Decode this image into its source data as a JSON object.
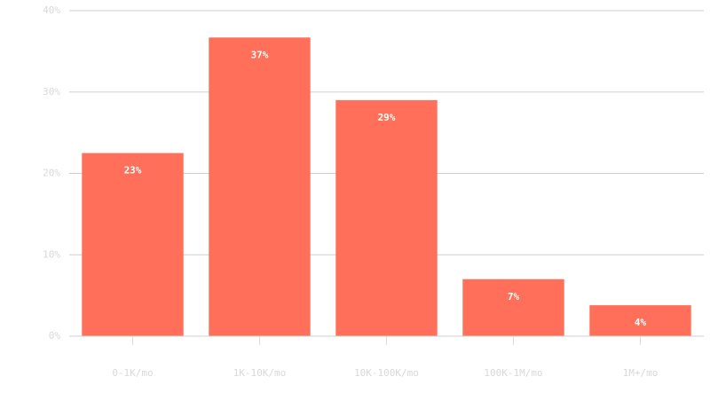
{
  "chart_data": {
    "type": "bar",
    "categories": [
      "0-1K/mo",
      "1K-10K/mo",
      "10K-100K/mo",
      "100K-1M/mo",
      "1M+/mo"
    ],
    "values": [
      22.5,
      36.7,
      29,
      7,
      3.8
    ],
    "value_labels": [
      "23%",
      "37%",
      "29%",
      "7%",
      "4%"
    ],
    "color": "#ff6f59",
    "ylim": [
      0,
      40
    ],
    "yticks": [
      {
        "value": 0,
        "label": "0%"
      },
      {
        "value": 10,
        "label": "10%"
      },
      {
        "value": 20,
        "label": "20%"
      },
      {
        "value": 30,
        "label": "30%"
      },
      {
        "value": 40,
        "label": "40%"
      }
    ],
    "grid": true
  }
}
